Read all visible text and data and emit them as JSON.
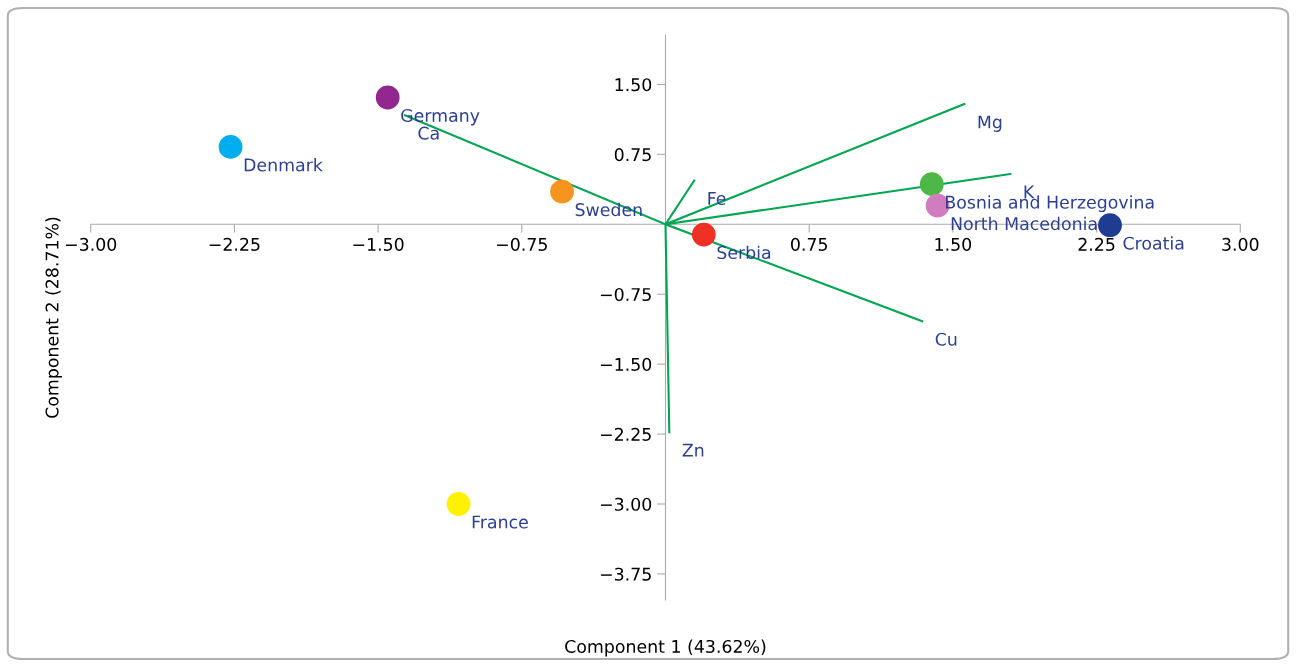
{
  "chart_data": {
    "type": "scatter",
    "xlabel": "Component 1 (43.62%)",
    "ylabel": "Component 2 (28.71%)",
    "xlim": [
      -3,
      3
    ],
    "ylim": [
      -4.03,
      2.03
    ],
    "xticks": [
      {
        "value": -3,
        "label": "−3.00"
      },
      {
        "value": -2.25,
        "label": "−2.25"
      },
      {
        "value": -1.5,
        "label": "−1.50"
      },
      {
        "value": -0.75,
        "label": "−0.75"
      },
      {
        "value": 0,
        "label": null
      },
      {
        "value": 0.75,
        "label": "0.75"
      },
      {
        "value": 1.5,
        "label": "1.50"
      },
      {
        "value": 2.25,
        "label": "2.25"
      },
      {
        "value": 3,
        "label": "3.00"
      }
    ],
    "yticks": [
      {
        "value": 1.5,
        "label": "1.50"
      },
      {
        "value": 0.75,
        "label": "0.75"
      },
      {
        "value": -0.75,
        "label": "−0.75"
      },
      {
        "value": -1.5,
        "label": "−1.50"
      },
      {
        "value": -2.25,
        "label": "−2.25"
      },
      {
        "value": -3,
        "label": "−3.00"
      },
      {
        "value": -3.75,
        "label": "−3.75"
      }
    ],
    "grid": false,
    "legend": false,
    "series": [
      {
        "marker": "circle",
        "x": [
          -1.45,
          -2.27,
          -0.54,
          -1.08,
          0.2,
          1.39,
          1.42,
          2.32
        ],
        "values": [
          1.36,
          0.83,
          0.35,
          -3.0,
          -0.11,
          0.43,
          0.2,
          -0.01
        ],
        "colors": [
          "#92278f",
          "#00aeef",
          "#f7941d",
          "#fff200",
          "#ee3124",
          "#4db848",
          "#d07cbf",
          "#1f3c93"
        ]
      },
      {
        "type": "line",
        "x": [
          0,
          -1.36,
          null,
          0,
          0.15,
          null,
          0,
          1.56,
          null,
          0,
          1.8,
          null,
          0,
          1.34,
          null,
          0,
          0.02
        ],
        "values": [
          0,
          1.17,
          null,
          0,
          0.47,
          null,
          0,
          1.29,
          null,
          0,
          0.54,
          null,
          0,
          -1.04,
          null,
          0,
          -2.23
        ],
        "color": "#00a651"
      }
    ],
    "annotations": [
      {
        "text": "Germany",
        "x": -1.45,
        "y": 1.36
      },
      {
        "text": "Denmark",
        "x": -2.27,
        "y": 0.83
      },
      {
        "text": "Sweden",
        "x": -0.54,
        "y": 0.35
      },
      {
        "text": "France",
        "x": -1.08,
        "y": -3.0
      },
      {
        "text": "Serbia",
        "x": 0.2,
        "y": -0.11
      },
      {
        "text": "Bosnia and Herzegovina",
        "x": 1.39,
        "y": 0.43
      },
      {
        "text": "North Macedonia",
        "x": 1.42,
        "y": 0.2
      },
      {
        "text": "Croatia",
        "x": 2.32,
        "y": -0.01
      },
      {
        "text": "Ca",
        "x": -1.36,
        "y": 1.17
      },
      {
        "text": "Fe",
        "x": 0.15,
        "y": 0.47
      },
      {
        "text": "Mg",
        "x": 1.56,
        "y": 1.29
      },
      {
        "text": "K",
        "x": 1.8,
        "y": 0.54
      },
      {
        "text": "Cu",
        "x": 1.34,
        "y": -1.04
      },
      {
        "text": "Zn",
        "x": 0.02,
        "y": -2.23
      }
    ]
  }
}
